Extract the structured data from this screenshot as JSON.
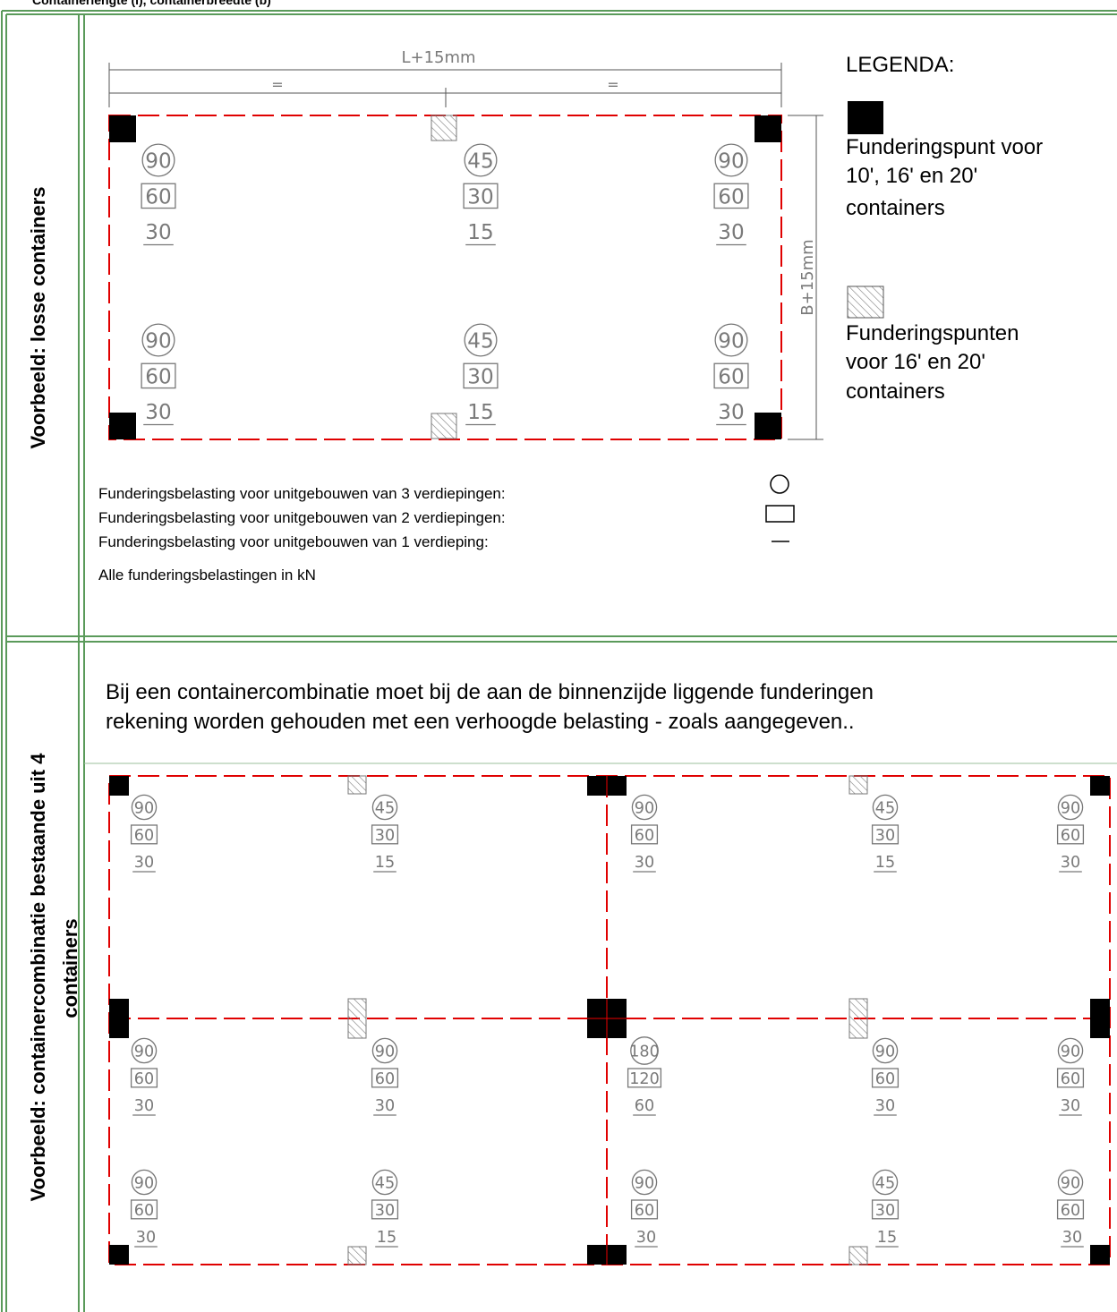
{
  "header": {
    "title": "Containerlengte (l), containerbreedte (b)"
  },
  "section1": {
    "label": "Voorbeeld: losse containers",
    "dimensions": {
      "length": "L+15mm",
      "half_left": "=",
      "half_right": "=",
      "width": "B+15mm"
    },
    "loads": [
      {
        "circle": "90",
        "square": "60",
        "line": "30"
      },
      {
        "circle": "45",
        "square": "30",
        "line": "15"
      },
      {
        "circle": "90",
        "square": "60",
        "line": "30"
      },
      {
        "circle": "90",
        "square": "60",
        "line": "30"
      },
      {
        "circle": "45",
        "square": "30",
        "line": "15"
      },
      {
        "circle": "90",
        "square": "60",
        "line": "30"
      }
    ],
    "legend": {
      "title": "LEGENDA:",
      "items": [
        {
          "lines": [
            "Funderingspunt voor",
            "10', 16' en 20'",
            "containers"
          ]
        },
        {
          "lines": [
            "Funderingspunten",
            "voor 16' en 20'",
            "containers"
          ]
        }
      ]
    },
    "notes": [
      "Funderingsbelasting voor unitgebouwen van 3 verdiepingen:",
      "Funderingsbelasting voor unitgebouwen van 2 verdiepingen:",
      "Funderingsbelasting voor unitgebouwen van 1 verdieping:"
    ],
    "unit_note": "Alle funderingsbelastingen in kN"
  },
  "section2": {
    "label": [
      "Voorbeeld: containercombinatie bestaande uit 4",
      "containers"
    ],
    "text": [
      "Bij een containercombinatie moet bij de aan de binnenzijde liggende funderingen",
      "rekening worden gehouden met een verhoogde belasting - zoals aangegeven.."
    ],
    "loads": [
      {
        "circle": "90",
        "square": "60",
        "line": "30"
      },
      {
        "circle": "45",
        "square": "30",
        "line": "15"
      },
      {
        "circle": "90",
        "square": "60",
        "line": "30"
      },
      {
        "circle": "45",
        "square": "30",
        "line": "15"
      },
      {
        "circle": "90",
        "square": "60",
        "line": "30"
      },
      {
        "circle": "90",
        "square": "60",
        "line": "30"
      },
      {
        "circle": "90",
        "square": "60",
        "line": "30"
      },
      {
        "circle": "180",
        "square": "120",
        "line": "60"
      },
      {
        "circle": "90",
        "square": "60",
        "line": "30"
      },
      {
        "circle": "90",
        "square": "60",
        "line": "30"
      },
      {
        "circle": "90",
        "square": "60",
        "line": "30"
      },
      {
        "circle": "45",
        "square": "30",
        "line": "15"
      },
      {
        "circle": "90",
        "square": "60",
        "line": "30"
      },
      {
        "circle": "45",
        "square": "30",
        "line": "15"
      },
      {
        "circle": "90",
        "square": "60",
        "line": "30"
      }
    ]
  }
}
